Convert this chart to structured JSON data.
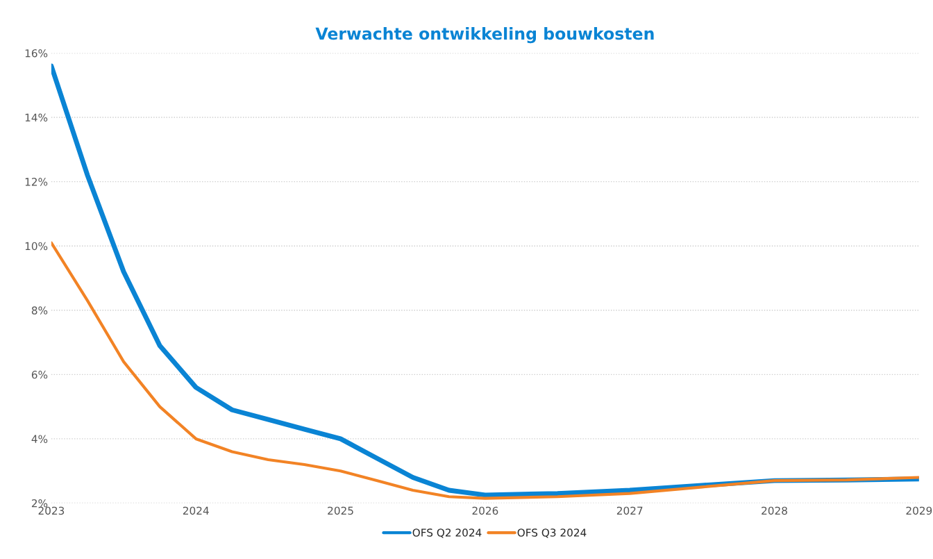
{
  "chart_data": {
    "type": "line",
    "title": "Verwachte ontwikkeling bouwkosten",
    "x": [
      2023,
      2023.25,
      2023.5,
      2023.75,
      2024,
      2024.25,
      2024.5,
      2024.75,
      2025,
      2025.25,
      2025.5,
      2025.75,
      2026,
      2026.5,
      2027,
      2027.5,
      2028,
      2028.5,
      2029
    ],
    "series": [
      {
        "name": "OFS Q2 2024",
        "color": "#0a84d4",
        "values": [
          15.6,
          12.2,
          9.2,
          6.9,
          5.6,
          4.9,
          4.6,
          4.3,
          4.0,
          3.4,
          2.8,
          2.4,
          2.25,
          2.3,
          2.4,
          2.55,
          2.7,
          2.72,
          2.75
        ]
      },
      {
        "name": "OFS Q3 2024",
        "color": "#f28325",
        "values": [
          10.1,
          8.3,
          6.4,
          5.0,
          4.0,
          3.6,
          3.35,
          3.2,
          3.0,
          2.7,
          2.4,
          2.2,
          2.15,
          2.2,
          2.3,
          2.5,
          2.7,
          2.72,
          2.8
        ]
      }
    ],
    "xlim": [
      2023,
      2029
    ],
    "xticks": [
      2023,
      2024,
      2025,
      2026,
      2027,
      2028,
      2029
    ],
    "ylim": [
      2,
      16
    ],
    "yticks": [
      {
        "value": 2,
        "label": "2%"
      },
      {
        "value": 4,
        "label": "4%"
      },
      {
        "value": 6,
        "label": "6%"
      },
      {
        "value": 8,
        "label": "8%"
      },
      {
        "value": 10,
        "label": "10%"
      },
      {
        "value": 12,
        "label": "12%"
      },
      {
        "value": 14,
        "label": "14%"
      },
      {
        "value": 16,
        "label": "16%"
      }
    ],
    "grid": "y",
    "legend": "bottom",
    "marker": "none",
    "line_style": "solid"
  }
}
